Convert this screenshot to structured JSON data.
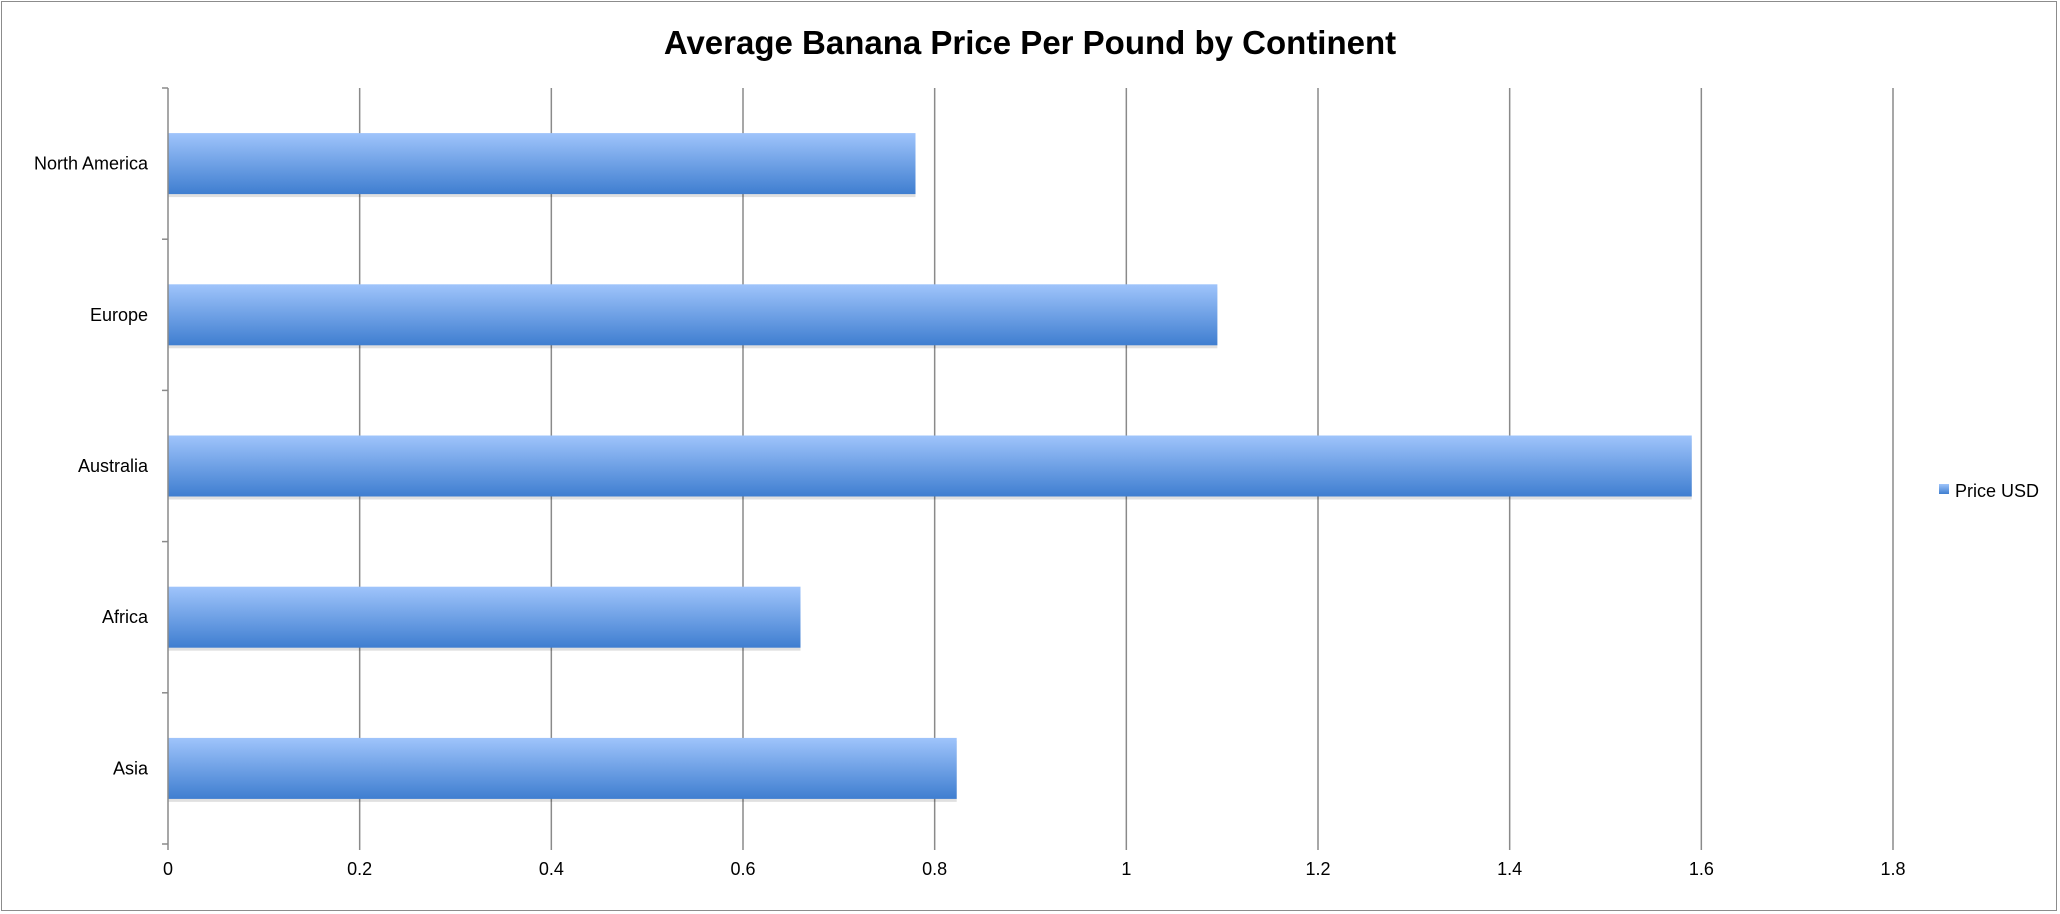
{
  "chart_data": {
    "type": "bar",
    "orientation": "horizontal",
    "title": "Average Banana Price Per Pound by Continent",
    "xlabel": "",
    "ylabel": "",
    "categories": [
      "North America",
      "Europe",
      "Australia",
      "Africa",
      "Asia"
    ],
    "series": [
      {
        "name": "Price USD",
        "values": [
          0.78,
          1.095,
          1.59,
          0.66,
          0.823
        ]
      }
    ],
    "xlim": [
      0,
      1.8
    ],
    "xticks": [
      "0",
      "0.2",
      "0.4",
      "0.6",
      "0.8",
      "1",
      "1.2",
      "1.4",
      "1.6",
      "1.8"
    ],
    "grid": "vertical",
    "legend": "right",
    "colors": {
      "bar_light": "#9fc4fb",
      "bar_dark": "#3f7ed0",
      "grid": "#8a8a8a"
    }
  }
}
